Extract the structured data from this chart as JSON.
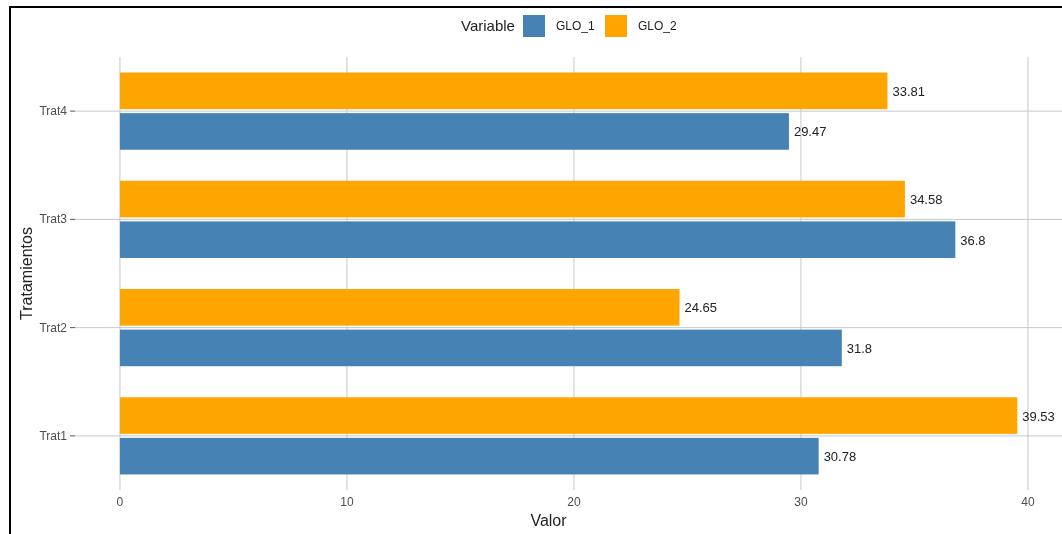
{
  "chart_data": {
    "type": "bar",
    "orientation": "horizontal",
    "xlabel": "Valor",
    "ylabel": "Tratamientos",
    "legend_title": "Variable",
    "legend": "top",
    "grid": true,
    "data_labels": true,
    "categories": [
      "Trat4",
      "Trat3",
      "Trat2",
      "Trat1"
    ],
    "series": [
      {
        "name": "GLO_1",
        "color": "#4682b4",
        "values": [
          29.47,
          36.8,
          31.8,
          30.78
        ]
      },
      {
        "name": "GLO_2",
        "color": "#ffa500",
        "values": [
          33.81,
          34.58,
          24.65,
          39.53
        ]
      }
    ],
    "xlim": [
      -1.98,
      41.5
    ],
    "xticks": [
      0,
      10,
      20,
      30,
      40
    ]
  }
}
